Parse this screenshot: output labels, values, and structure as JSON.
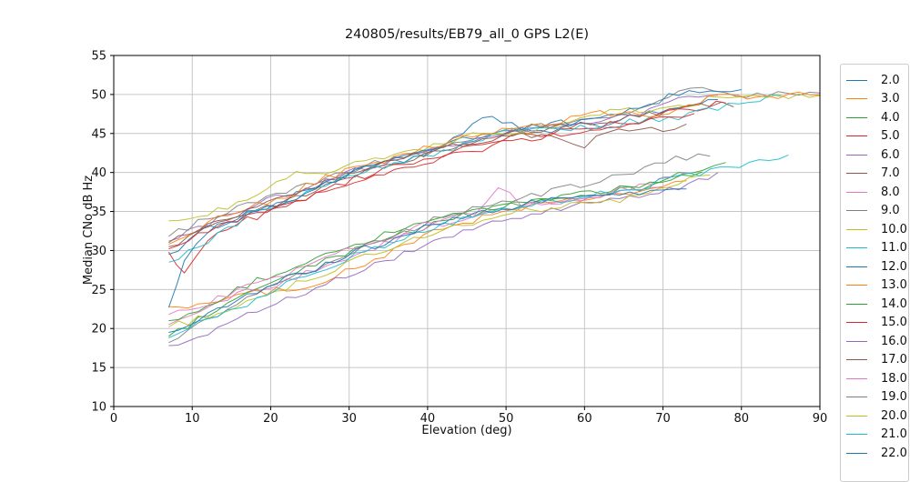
{
  "chart_data": {
    "type": "line",
    "title": "240805/results/EB79_all_0 GPS L2(E)",
    "xlabel": "Elevation (deg)",
    "ylabel": "Median CNo dB Hz",
    "xlim": [
      0,
      90
    ],
    "ylim": [
      10,
      55
    ],
    "xticks": [
      0,
      10,
      20,
      30,
      40,
      50,
      60,
      70,
      80,
      90
    ],
    "yticks": [
      10,
      15,
      20,
      25,
      30,
      35,
      40,
      45,
      50,
      55
    ],
    "xtick_labels": [
      "0",
      "10",
      "20",
      "30",
      "40",
      "50",
      "60",
      "70",
      "80",
      "90"
    ],
    "ytick_labels": [
      "10",
      "15",
      "20",
      "25",
      "30",
      "35",
      "40",
      "45",
      "50",
      "55"
    ],
    "grid": true,
    "grid_color": "#c6c6c6",
    "legend_position": "right-outside",
    "legend_clipped_at_bottom": true,
    "style": {
      "line_width": 1.0,
      "line_opacity": 0.9,
      "jitter": 0.45,
      "jitter_step_deg": 1.3,
      "seed": 1234
    },
    "series": [
      {
        "label": "2.0",
        "color": "#1f77b4",
        "x": [
          7,
          12,
          17,
          22,
          27,
          32,
          37,
          42,
          47,
          52,
          57,
          62,
          67,
          72,
          77
        ],
        "y": [
          29.5,
          32.8,
          34.8,
          36.5,
          38.9,
          40.5,
          41.5,
          43.4,
          44.8,
          45.3,
          45.6,
          46.2,
          47.5,
          48.3,
          49.4
        ]
      },
      {
        "label": "3.0",
        "color": "#ff7f0e",
        "x": [
          7,
          12,
          17,
          22,
          27,
          32,
          37,
          42,
          47,
          52,
          57,
          62,
          67,
          70,
          73
        ],
        "y": [
          22.8,
          23.2,
          24.4,
          25.0,
          26.2,
          28.2,
          30.6,
          32.8,
          34.3,
          35.5,
          36.2,
          36.9,
          37.6,
          38.2,
          38.8
        ]
      },
      {
        "label": "4.0",
        "color": "#2ca02c",
        "x": [
          7,
          12,
          17,
          22,
          27,
          32,
          37,
          42,
          47,
          52,
          57,
          62,
          67,
          72,
          75,
          78
        ],
        "y": [
          19.0,
          21.8,
          24.2,
          26.6,
          28.6,
          30.4,
          32.2,
          33.8,
          35.0,
          36.0,
          36.6,
          37.4,
          38.0,
          39.6,
          40.4,
          41.2
        ]
      },
      {
        "label": "5.0",
        "color": "#d62728",
        "x": [
          7,
          9,
          12,
          17,
          22,
          27,
          32,
          37,
          42,
          47,
          52,
          57,
          62,
          67,
          72,
          78
        ],
        "y": [
          29.8,
          26.8,
          31.5,
          34.0,
          35.5,
          38.0,
          39.6,
          41.0,
          42.4,
          43.8,
          44.6,
          45.2,
          45.9,
          46.8,
          47.8,
          49.0
        ]
      },
      {
        "label": "6.0",
        "color": "#9467bd",
        "x": [
          7,
          12,
          17,
          22,
          27,
          32,
          37,
          42,
          47,
          52,
          57,
          62,
          67,
          72,
          77
        ],
        "y": [
          31.2,
          33.4,
          35.6,
          37.2,
          39.0,
          40.6,
          42.0,
          43.2,
          44.6,
          45.4,
          46.0,
          46.6,
          47.6,
          49.6,
          49.8
        ]
      },
      {
        "label": "7.0",
        "color": "#8c564b",
        "x": [
          7,
          12,
          17,
          22,
          27,
          32,
          37,
          42,
          47,
          52,
          57,
          60,
          63,
          67,
          70,
          73
        ],
        "y": [
          30.5,
          33.0,
          35.0,
          36.4,
          38.3,
          40.0,
          41.6,
          43.0,
          44.0,
          44.8,
          44.6,
          43.4,
          45.2,
          45.9,
          45.6,
          46.3
        ]
      },
      {
        "label": "8.0",
        "color": "#e377c2",
        "x": [
          7,
          12,
          17,
          22,
          27,
          32,
          37,
          42,
          47,
          52,
          57,
          62,
          67,
          70,
          73
        ],
        "y": [
          20.5,
          22.4,
          24.8,
          26.0,
          28.0,
          30.0,
          31.8,
          33.4,
          34.8,
          35.8,
          36.4,
          37.1,
          38.4,
          39.2,
          39.9
        ]
      },
      {
        "label": "9.0",
        "color": "#7f7f7f",
        "x": [
          7,
          12,
          17,
          22,
          27,
          32,
          37,
          42,
          47,
          52,
          57,
          62,
          67,
          72,
          75,
          78,
          82,
          86,
          90
        ],
        "y": [
          31.8,
          34.2,
          36.0,
          37.6,
          39.2,
          40.8,
          42.2,
          43.5,
          44.6,
          45.5,
          46.2,
          47.0,
          47.8,
          50.2,
          50.8,
          49.9,
          49.8,
          50.0,
          50.1
        ]
      },
      {
        "label": "10.0",
        "color": "#bcbd22",
        "x": [
          7,
          12,
          17,
          22,
          27,
          32,
          37,
          42,
          47,
          52,
          57,
          62,
          67,
          72,
          77,
          82,
          86,
          90
        ],
        "y": [
          33.8,
          34.6,
          36.8,
          39.5,
          40.2,
          41.5,
          42.6,
          43.8,
          45.2,
          45.0,
          46.4,
          47.6,
          48.0,
          48.6,
          49.6,
          49.9,
          49.9,
          50.0
        ]
      },
      {
        "label": "11.0",
        "color": "#17becf",
        "x": [
          7,
          12,
          17,
          22,
          27,
          32,
          37,
          42,
          47,
          52,
          57,
          62,
          67,
          72,
          77,
          81,
          85
        ],
        "y": [
          28.5,
          31.0,
          34.4,
          36.0,
          38.6,
          40.0,
          41.4,
          42.8,
          44.4,
          45.6,
          45.4,
          45.9,
          46.6,
          47.0,
          48.2,
          49.3,
          49.9
        ]
      },
      {
        "label": "12.0",
        "color": "#1f77b4",
        "x": [
          7,
          9,
          12,
          17,
          22,
          27,
          32,
          37,
          42,
          47,
          52,
          57,
          62,
          67,
          72,
          76,
          80
        ],
        "y": [
          22.7,
          28.5,
          32.5,
          34.6,
          36.2,
          38.4,
          40.4,
          42.0,
          43.4,
          47.3,
          45.7,
          46.3,
          46.8,
          48.3,
          50.3,
          50.7,
          50.6
        ]
      },
      {
        "label": "13.0",
        "color": "#ff7f0e",
        "x": [
          7,
          12,
          17,
          22,
          27,
          32,
          37,
          42,
          47,
          52,
          57,
          62,
          67,
          72,
          77,
          82,
          86,
          90
        ],
        "y": [
          30.8,
          33.6,
          35.4,
          37.0,
          39.4,
          40.9,
          42.4,
          43.6,
          45.0,
          45.8,
          46.6,
          47.8,
          47.4,
          48.0,
          49.8,
          49.4,
          49.8,
          50.0
        ]
      },
      {
        "label": "14.0",
        "color": "#2ca02c",
        "x": [
          7,
          12,
          17,
          22,
          27,
          32,
          37,
          42,
          47,
          52,
          57,
          62,
          67,
          71,
          75
        ],
        "y": [
          21.0,
          23.0,
          25.6,
          27.6,
          29.4,
          31.2,
          32.8,
          34.2,
          35.4,
          36.2,
          36.8,
          37.5,
          38.3,
          39.4,
          40.2
        ]
      },
      {
        "label": "15.0",
        "color": "#d62728",
        "x": [
          7,
          12,
          17,
          22,
          27,
          32,
          37,
          42,
          47,
          52,
          57,
          62,
          67,
          71,
          74
        ],
        "y": [
          30.2,
          32.6,
          34.4,
          35.8,
          37.6,
          39.2,
          40.7,
          41.9,
          43.1,
          44.3,
          45.0,
          45.5,
          46.5,
          47.0,
          47.6
        ]
      },
      {
        "label": "16.0",
        "color": "#9467bd",
        "x": [
          7,
          12,
          17,
          22,
          27,
          32,
          37,
          42,
          47,
          52,
          57,
          62,
          67,
          72,
          77
        ],
        "y": [
          17.8,
          19.6,
          21.6,
          23.6,
          25.6,
          27.6,
          29.6,
          31.4,
          33.0,
          34.4,
          35.4,
          36.4,
          37.2,
          38.0,
          39.9
        ]
      },
      {
        "label": "17.0",
        "color": "#8c564b",
        "x": [
          7,
          12,
          17,
          22,
          27,
          32,
          37,
          42,
          47,
          52,
          57,
          62,
          67,
          72,
          76,
          79
        ],
        "y": [
          31.0,
          33.2,
          35.2,
          36.8,
          38.8,
          40.3,
          41.8,
          43.1,
          44.4,
          45.1,
          45.9,
          46.5,
          47.3,
          47.9,
          48.8,
          48.5
        ]
      },
      {
        "label": "18.0",
        "color": "#e377c2",
        "x": [
          7,
          12,
          17,
          22,
          27,
          32,
          37,
          42,
          46,
          49,
          52,
          57,
          62,
          66,
          70
        ],
        "y": [
          21.8,
          23.4,
          25.4,
          27.0,
          29.0,
          30.8,
          32.4,
          34.0,
          35.0,
          38.3,
          35.8,
          36.4,
          37.0,
          37.6,
          38.2
        ]
      },
      {
        "label": "19.0",
        "color": "#7f7f7f",
        "x": [
          7,
          12,
          17,
          22,
          27,
          32,
          37,
          42,
          47,
          52,
          57,
          62,
          65,
          69,
          73,
          76
        ],
        "y": [
          18.2,
          21.0,
          23.8,
          26.2,
          28.4,
          30.4,
          32.4,
          34.4,
          35.8,
          36.8,
          37.8,
          38.8,
          39.8,
          41.2,
          41.9,
          42.0
        ]
      },
      {
        "label": "20.0",
        "color": "#bcbd22",
        "x": [
          7,
          12,
          17,
          22,
          27,
          32,
          37,
          42,
          47,
          52,
          57,
          62,
          67,
          72,
          76
        ],
        "y": [
          20.2,
          21.6,
          23.4,
          25.2,
          27.2,
          29.2,
          31.0,
          32.6,
          34.0,
          35.2,
          35.6,
          36.2,
          36.8,
          38.6,
          39.6
        ]
      },
      {
        "label": "21.0",
        "color": "#17becf",
        "x": [
          7,
          12,
          17,
          22,
          27,
          32,
          37,
          42,
          47,
          52,
          57,
          62,
          67,
          72,
          76,
          81,
          86
        ],
        "y": [
          18.8,
          21.4,
          23.0,
          25.6,
          27.8,
          29.8,
          31.6,
          33.2,
          34.6,
          35.7,
          36.4,
          37.2,
          38.0,
          39.7,
          40.1,
          41.2,
          42.3
        ]
      },
      {
        "label": "22.0",
        "color": "#1f77b4",
        "x": [
          7,
          12,
          17,
          22,
          27,
          32,
          37,
          42,
          47,
          52,
          57,
          62,
          67,
          70,
          73
        ],
        "y": [
          19.5,
          22.0,
          24.4,
          26.4,
          28.2,
          30.2,
          32.0,
          33.6,
          34.9,
          35.9,
          36.5,
          37.0,
          37.5,
          37.7,
          37.8
        ]
      }
    ]
  }
}
